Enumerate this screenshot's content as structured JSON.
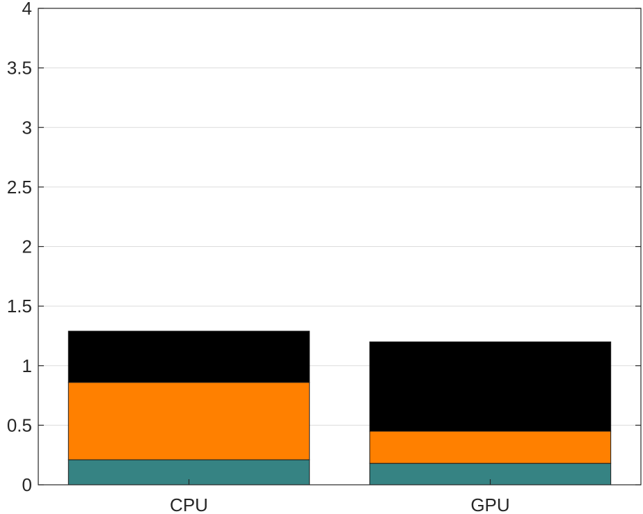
{
  "chart_data": {
    "type": "bar",
    "stacked": true,
    "categories": [
      "CPU",
      "GPU"
    ],
    "series": [
      {
        "values": [
          0.21,
          0.18
        ],
        "color": "#368383"
      },
      {
        "values": [
          0.65,
          0.27
        ],
        "color": "#ff8000"
      },
      {
        "values": [
          0.43,
          0.75
        ],
        "color": "#000000"
      }
    ],
    "totals": [
      1.29,
      1.2
    ],
    "ylim": [
      0,
      4
    ],
    "yticks": [
      "0",
      "0.5",
      "1",
      "1.5",
      "2",
      "2.5",
      "3",
      "3.5",
      "4"
    ],
    "grid": true,
    "legend": "none"
  }
}
